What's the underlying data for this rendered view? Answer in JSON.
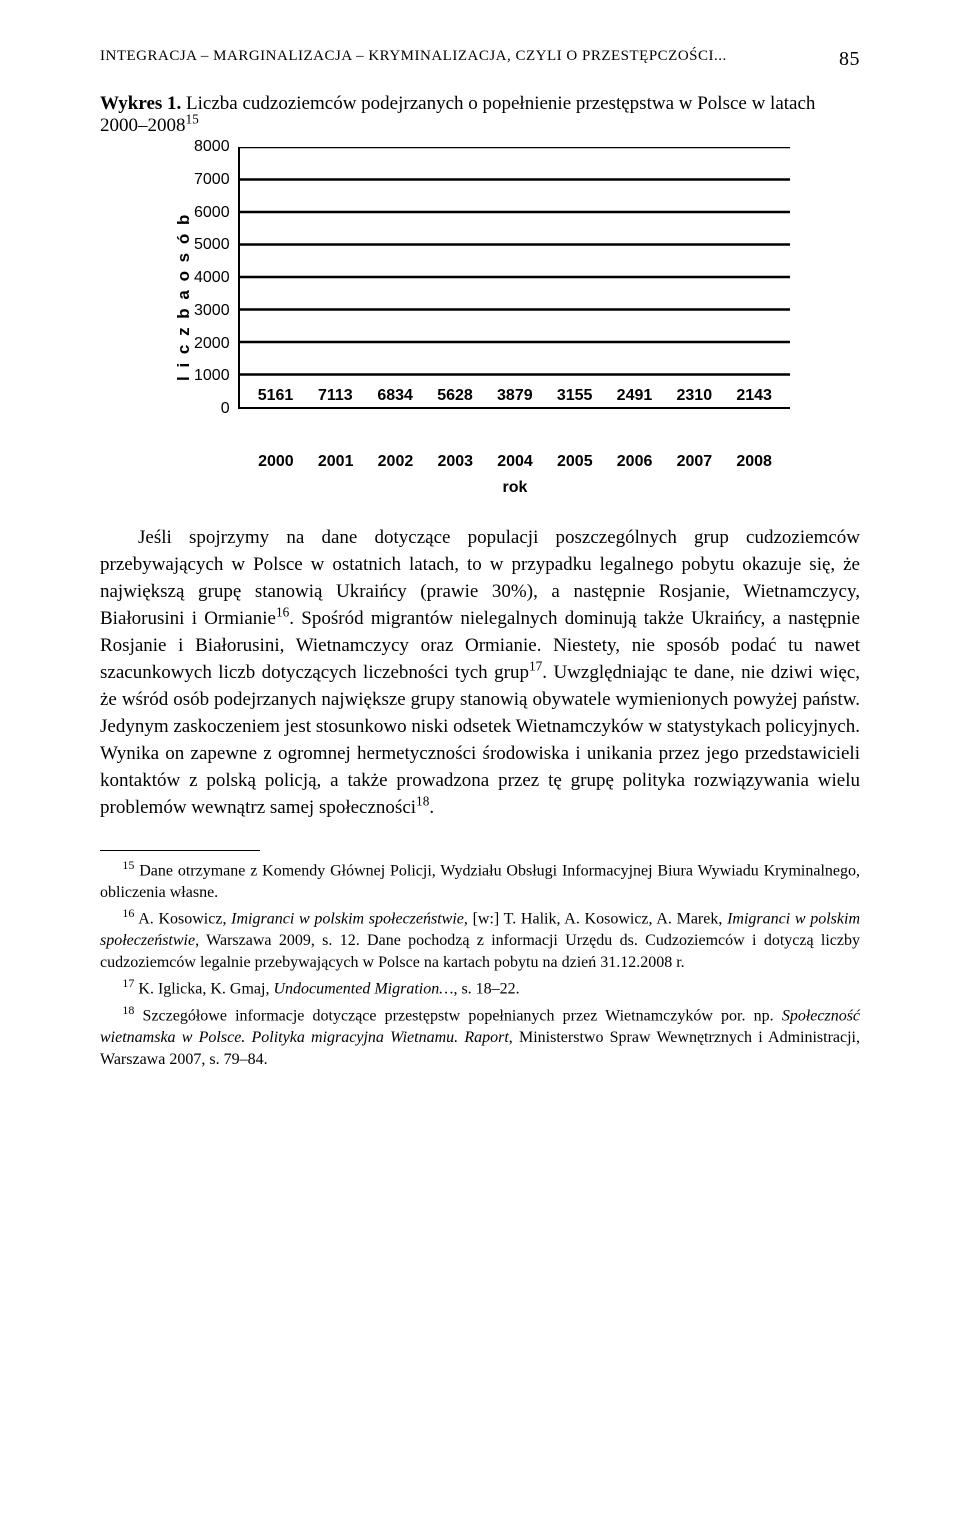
{
  "header": {
    "running_title": "INTEGRACJA – MARGINALIZACJA – KRYMINALIZACJA, CZYLI O PRZESTĘPCZOŚCI...",
    "page_number": "85"
  },
  "figure": {
    "caption_label": "Wykres 1.",
    "caption_text": "Liczba cudzoziemców podejrzanych o popełnienie przestępstwa w Polsce w latach 2000–2008",
    "caption_sup": "15"
  },
  "chart": {
    "type": "bar",
    "ylabel": "l i c z b a  o s ó b",
    "xlabel": "rok",
    "ylim_max": 8000,
    "yticks": [
      "8000",
      "7000",
      "6000",
      "5000",
      "4000",
      "3000",
      "2000",
      "1000",
      "0"
    ],
    "categories": [
      "2000",
      "2001",
      "2002",
      "2003",
      "2004",
      "2005",
      "2006",
      "2007",
      "2008"
    ],
    "values": [
      5161,
      7113,
      6834,
      5628,
      3879,
      3155,
      2491,
      2310,
      2143
    ],
    "bar_color": "#000000",
    "grid_color": "#000000",
    "background_color": "#ffffff",
    "bar_width_pct": 66
  },
  "body": {
    "paragraph": "Jeśli spojrzymy na dane dotyczące populacji poszczególnych grup cudzoziemców przebywających w Polsce w ostatnich latach, to w przypadku legalnego pobytu okazuje się, że największą grupę stanowią Ukraińcy (prawie 30%), a następnie Rosjanie, Wietnamczycy, Białorusini i Ormianie¹⁶. Spośród migrantów nielegalnych dominują także Ukraińcy, a następnie Rosjanie i Białorusini, Wietnamczycy oraz Ormianie. Niestety, nie sposób podać tu nawet szacunkowych liczb dotyczących liczebności tych grup¹⁷. Uwzględniając te dane, nie dziwi więc, że wśród osób podejrzanych największe grupy stanowią obywatele wymienionych powyżej państw. Jedynym zaskoczeniem jest stosunkowo niski odsetek Wietnamczyków w statystykach policyjnych. Wynika on zapewne z ogromnej hermetyczności środowiska i unikania przez jego przedstawicieli kontaktów z polską policją, a także prowadzona przez tę grupę polityka rozwiązywania wielu problemów wewnątrz samej społeczności¹⁸."
  },
  "footnotes": {
    "n15": "Dane otrzymane z Komendy Głównej Policji, Wydziału Obsługi Informacyjnej Biura Wywiadu Kryminalnego, obliczenia własne.",
    "n16_pre": "A. Kosowicz, ",
    "n16_it1": "Imigranci w polskim społeczeństwie",
    "n16_mid": ", [w:] T. Halik, A. Kosowicz, A. Marek, ",
    "n16_it2": "Imigranci w polskim społeczeństwie",
    "n16_post": ", Warszawa 2009, s. 12. Dane pochodzą z informacji Urzędu ds. Cudzoziemców i dotyczą liczby cudzoziemców legalnie przebywających w Polsce na kartach pobytu na dzień 31.12.2008 r.",
    "n17_pre": "K. Iglicka, K. Gmaj, ",
    "n17_it": "Undocumented Migration…",
    "n17_post": ", s. 18–22.",
    "n18_pre": "Szczegółowe informacje dotyczące przestępstw popełnianych przez Wietnamczyków por. np. ",
    "n18_it": "Społeczność wietnamska w Polsce. Polityka migracyjna Wietnamu. Raport",
    "n18_post": ", Ministerstwo Spraw Wewnętrznych i Administracji, Warszawa 2007, s. 79–84."
  }
}
